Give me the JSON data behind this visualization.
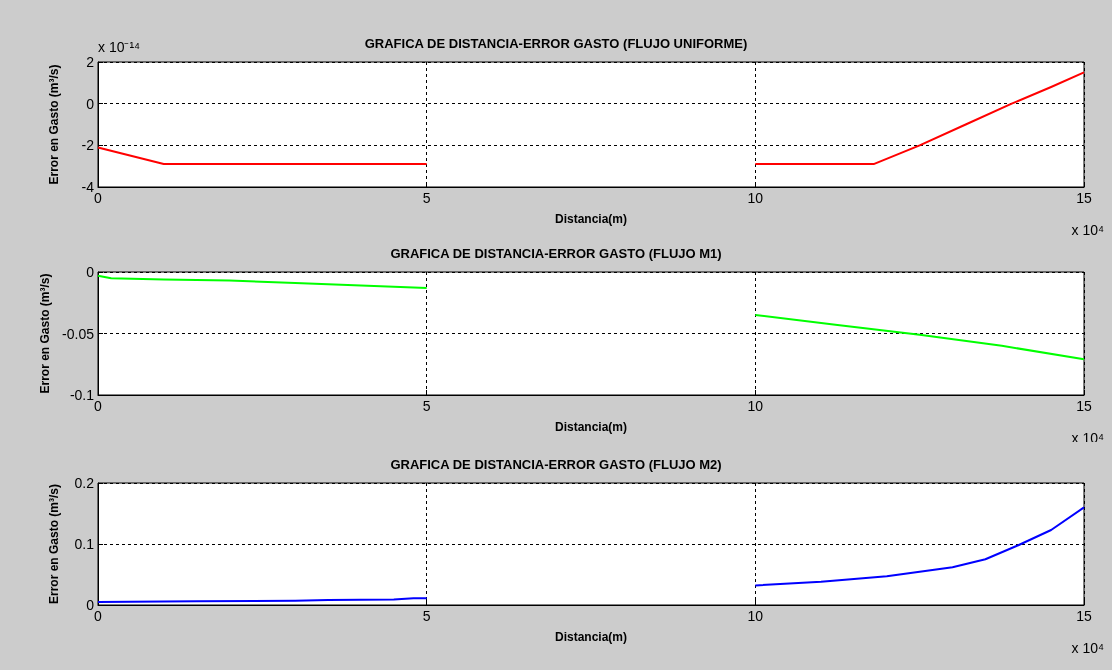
{
  "chart_data": [
    {
      "type": "line",
      "title": "GRAFICA DE DISTANCIA-ERROR GASTO (FLUJO UNIFORME)",
      "xlabel": "Distancia(m)",
      "ylabel": "Error en Gasto (m³/s)",
      "x": [
        0,
        0.5,
        1,
        2,
        3,
        4,
        5,
        7.5,
        10,
        11,
        11.8,
        12.5,
        13.2,
        13.9,
        14.5,
        15
      ],
      "series": [
        {
          "color": "#ff0000",
          "values": [
            -2.1,
            -2.5,
            -2.9,
            -2.9,
            -2.9,
            -2.9,
            -2.9,
            null,
            -2.9,
            -2.9,
            -2.9,
            -2.0,
            -1.0,
            0,
            0.8,
            1.5
          ]
        }
      ],
      "xlim": [
        0,
        15
      ],
      "xticks": [
        0,
        5,
        10,
        15
      ],
      "ylim": [
        -4,
        2
      ],
      "yticks": [
        -4,
        -2,
        0,
        2
      ],
      "grid": true,
      "marker": "none",
      "annotations": [
        "x 10⁻¹⁴",
        "x 10⁴"
      ]
    },
    {
      "type": "line",
      "title": "GRAFICA DE DISTANCIA-ERROR GASTO (FLUJO M1)",
      "xlabel": "Distancia(m)",
      "ylabel": "Error en Gasto (m³/s)",
      "x": [
        0,
        0.2,
        1,
        2,
        3,
        4,
        5,
        7.5,
        10,
        11.25,
        12.5,
        13.75,
        15
      ],
      "series": [
        {
          "color": "#00ff00",
          "values": [
            -0.003,
            -0.005,
            -0.006,
            -0.007,
            -0.009,
            -0.011,
            -0.013,
            null,
            -0.035,
            -0.043,
            -0.051,
            -0.06,
            -0.071
          ]
        }
      ],
      "xlim": [
        0,
        15
      ],
      "xticks": [
        0,
        5,
        10,
        15
      ],
      "ylim": [
        -0.1,
        0
      ],
      "yticks": [
        -0.1,
        -0.05,
        0
      ],
      "grid": true,
      "marker": "none",
      "annotations": [
        "x 10⁴"
      ]
    },
    {
      "type": "line",
      "title": "GRAFICA DE DISTANCIA-ERROR GASTO (FLUJO M2)",
      "xlabel": "Distancia(m)",
      "ylabel": "Error en Gasto (m³/s)",
      "x": [
        0,
        1.5,
        3,
        3.5,
        4.5,
        4.8,
        5,
        7.5,
        10,
        11,
        12,
        13,
        13.5,
        14,
        14.5,
        15
      ],
      "series": [
        {
          "color": "#0000ff",
          "values": [
            0.005,
            0.006,
            0.007,
            0.008,
            0.009,
            0.011,
            0.011,
            null,
            0.032,
            0.038,
            0.047,
            0.062,
            0.075,
            0.098,
            0.123,
            0.16
          ]
        }
      ],
      "xlim": [
        0,
        15
      ],
      "xticks": [
        0,
        5,
        10,
        15
      ],
      "ylim": [
        0,
        0.2
      ],
      "yticks": [
        0,
        0.1,
        0.2
      ],
      "grid": true,
      "marker": "none",
      "annotations": [
        "x 10⁴"
      ]
    }
  ]
}
